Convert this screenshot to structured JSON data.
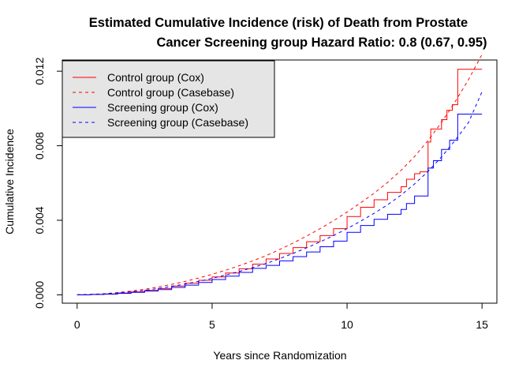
{
  "chart_data": {
    "type": "line",
    "title_lines": [
      "Estimated Cumulative Incidence (risk) of Death from Prostate",
      "Cancer Screening group Hazard Ratio: 0.8 (0.67, 0.95)"
    ],
    "xlabel": "Years since Randomization",
    "ylabel": "Cumulative Incidence",
    "xlim": [
      -0.55,
      15.55
    ],
    "ylim": [
      -0.00045,
      0.0126
    ],
    "xticks": [
      0,
      5,
      10,
      15
    ],
    "xtick_labels": [
      "0",
      "5",
      "10",
      "15"
    ],
    "yticks": [
      0.0,
      0.004,
      0.008,
      0.012
    ],
    "ytick_labels": [
      "0.000",
      "0.004",
      "0.008",
      "0.012"
    ],
    "grid": false,
    "legend_position": "top-left",
    "legend_background": "#e5e5e5",
    "series": [
      {
        "name": "Control group (Cox)",
        "color": "#ff0000",
        "dash": "solid",
        "step": true,
        "x": [
          0,
          0.5,
          1.0,
          1.5,
          2.0,
          2.5,
          3.0,
          3.5,
          4.0,
          4.5,
          5.0,
          5.5,
          6.0,
          6.5,
          7.0,
          7.5,
          8.0,
          8.5,
          9.0,
          9.5,
          10.0,
          10.5,
          11.0,
          11.5,
          12.0,
          12.2,
          12.5,
          12.7,
          12.9,
          13.0,
          13.1,
          13.2,
          13.5,
          13.7,
          13.9,
          14.1,
          14.3,
          14.5,
          14.8,
          15.0
        ],
        "y": [
          0.0,
          2e-05,
          5e-05,
          0.0001,
          0.00016,
          0.00024,
          0.00034,
          0.00047,
          0.00062,
          0.00078,
          0.00096,
          0.00117,
          0.0014,
          0.00165,
          0.00192,
          0.00222,
          0.00253,
          0.00285,
          0.00318,
          0.00355,
          0.0042,
          0.0047,
          0.0051,
          0.0055,
          0.0058,
          0.0062,
          0.0065,
          0.0066,
          0.0066,
          0.0082,
          0.0089,
          0.0089,
          0.0094,
          0.0099,
          0.0102,
          0.0121,
          0.0121,
          0.0121,
          0.0121,
          0.0121
        ]
      },
      {
        "name": "Control group (Casebase)",
        "color": "#ff0000",
        "dash": "dashed",
        "step": false,
        "x": [
          0,
          0.5,
          1.0,
          1.5,
          2.0,
          2.5,
          3.0,
          3.5,
          4.0,
          4.5,
          5.0,
          5.5,
          6.0,
          6.5,
          7.0,
          7.5,
          8.0,
          8.5,
          9.0,
          9.5,
          10.0,
          10.5,
          11.0,
          11.5,
          12.0,
          12.5,
          13.0,
          13.5,
          14.0,
          14.5,
          15.0
        ],
        "y": [
          0.0,
          2e-05,
          6e-05,
          0.00012,
          0.0002,
          0.0003,
          0.00042,
          0.00056,
          0.00072,
          0.0009,
          0.0011,
          0.00132,
          0.00156,
          0.00182,
          0.0021,
          0.00243,
          0.00278,
          0.00315,
          0.00355,
          0.00398,
          0.00444,
          0.00493,
          0.00545,
          0.00603,
          0.00668,
          0.00742,
          0.00828,
          0.00925,
          0.01035,
          0.01155,
          0.0129
        ]
      },
      {
        "name": "Screening group (Cox)",
        "color": "#0000ff",
        "dash": "solid",
        "step": true,
        "x": [
          0,
          0.5,
          1.0,
          1.5,
          2.0,
          2.5,
          3.0,
          3.5,
          4.0,
          4.5,
          5.0,
          5.5,
          6.0,
          6.5,
          7.0,
          7.5,
          8.0,
          8.5,
          9.0,
          9.5,
          10.0,
          10.5,
          11.0,
          11.5,
          12.0,
          12.2,
          12.5,
          12.9,
          13.0,
          13.2,
          13.5,
          13.8,
          14.1,
          14.5,
          15.0
        ],
        "y": [
          0.0,
          2e-05,
          4e-05,
          8e-05,
          0.00013,
          0.0002,
          0.00028,
          0.0004,
          0.00052,
          0.00066,
          0.00082,
          0.001,
          0.0012,
          0.00142,
          0.00158,
          0.00182,
          0.00205,
          0.0023,
          0.00258,
          0.00288,
          0.00335,
          0.00372,
          0.00405,
          0.00432,
          0.00458,
          0.0049,
          0.0053,
          0.0053,
          0.0068,
          0.0072,
          0.0078,
          0.0083,
          0.0097,
          0.0097,
          0.0097
        ]
      },
      {
        "name": "Screening group (Casebase)",
        "color": "#0000ff",
        "dash": "dashed",
        "step": false,
        "x": [
          0,
          0.5,
          1.0,
          1.5,
          2.0,
          2.5,
          3.0,
          3.5,
          4.0,
          4.5,
          5.0,
          5.5,
          6.0,
          6.5,
          7.0,
          7.5,
          8.0,
          8.5,
          9.0,
          9.5,
          10.0,
          10.5,
          11.0,
          11.5,
          12.0,
          12.5,
          13.0,
          13.5,
          14.0,
          14.5,
          15.0
        ],
        "y": [
          0.0,
          2e-05,
          5e-05,
          0.0001,
          0.00016,
          0.00024,
          0.00034,
          0.00045,
          0.00058,
          0.00072,
          0.00088,
          0.00106,
          0.00125,
          0.00146,
          0.00168,
          0.00194,
          0.00222,
          0.00252,
          0.00284,
          0.00318,
          0.00355,
          0.00395,
          0.00437,
          0.00483,
          0.00535,
          0.00595,
          0.00662,
          0.0074,
          0.00828,
          0.00925,
          0.0109
        ]
      }
    ]
  }
}
